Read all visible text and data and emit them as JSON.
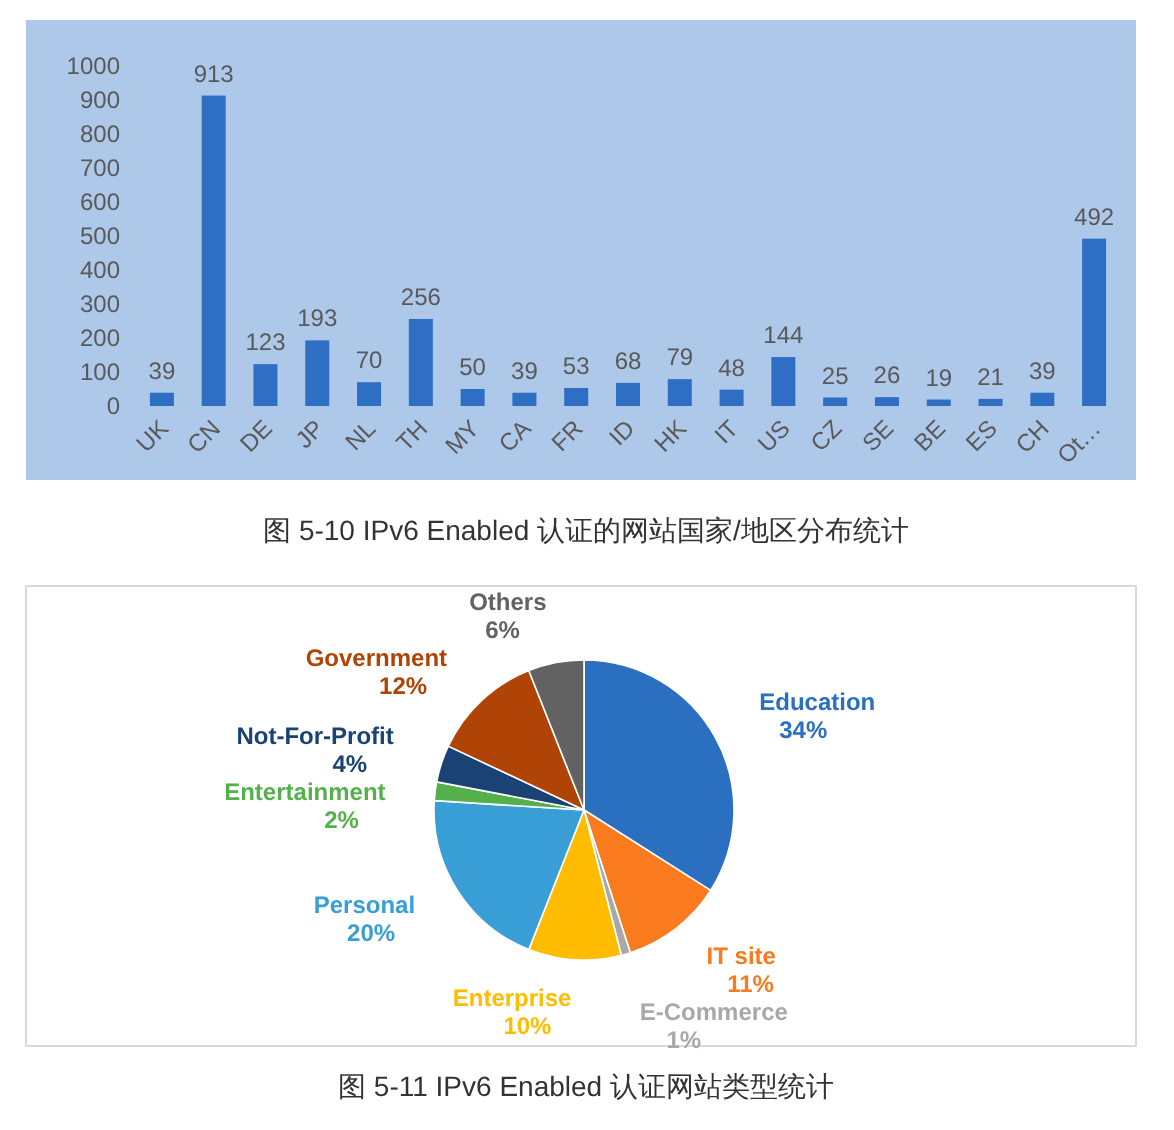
{
  "chart_data": [
    {
      "type": "bar",
      "title": "图 5-10 IPv6 Enabled 认证的网站国家/地区分布统计",
      "categories": [
        "UK",
        "CN",
        "DE",
        "JP",
        "NL",
        "TH",
        "MY",
        "CA",
        "FR",
        "ID",
        "HK",
        "IT",
        "US",
        "CZ",
        "SE",
        "BE",
        "ES",
        "CH",
        "Ot…"
      ],
      "values": [
        39,
        913,
        123,
        193,
        70,
        256,
        50,
        39,
        53,
        68,
        79,
        48,
        144,
        25,
        26,
        19,
        21,
        39,
        492
      ],
      "color": "#2e6fc4",
      "ylim": [
        0,
        1000
      ],
      "yticks": [
        0,
        100,
        200,
        300,
        400,
        500,
        600,
        700,
        800,
        900,
        1000
      ],
      "grid": false,
      "data_labels": true
    },
    {
      "type": "pie",
      "title": "图 5-11 IPv6 Enabled 认证网站类型统计",
      "categories": [
        "Education",
        "IT site",
        "E-Commerce",
        "Enterprise",
        "Personal",
        "Entertainment",
        "Not-For-Profit",
        "Government",
        "Others"
      ],
      "values": [
        34,
        11,
        1,
        10,
        20,
        2,
        4,
        12,
        6
      ],
      "value_labels": [
        "34%",
        "11%",
        "1%",
        "10%",
        "20%",
        "2%",
        "4%",
        "12%",
        "6%"
      ],
      "colors": [
        "#2a6fc0",
        "#fa7a1e",
        "#a8a8a8",
        "#ffbc00",
        "#3a9ed6",
        "#55b04c",
        "#1a4275",
        "#b04306",
        "#626262"
      ]
    }
  ]
}
